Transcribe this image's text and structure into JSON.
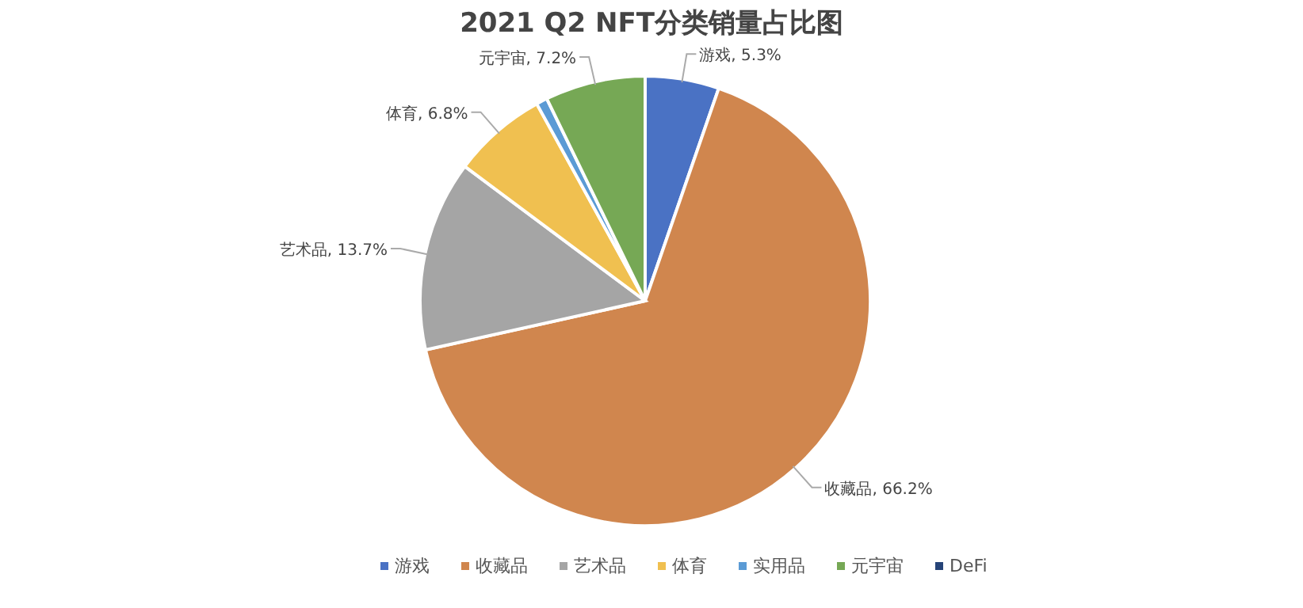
{
  "chart_data": {
    "type": "pie",
    "title": "2021 Q2 NFT分类销量占比图",
    "categories": [
      "游戏",
      "收藏品",
      "艺术品",
      "体育",
      "实用品",
      "元宇宙",
      "DeFi"
    ],
    "values": [
      5.3,
      66.2,
      13.7,
      6.8,
      0.8,
      7.2,
      0
    ],
    "value_labels": [
      "游戏, 5.3%",
      "收藏品, 66.2%",
      "艺术品, 13.7%",
      "体育, 6.8%",
      null,
      "元宇宙, 7.2%",
      null
    ],
    "colors": [
      "#4a72c4",
      "#d0864e",
      "#a5a5a5",
      "#f0c050",
      "#5b9bd5",
      "#76a855",
      "#264478"
    ],
    "legend": "bottom"
  }
}
